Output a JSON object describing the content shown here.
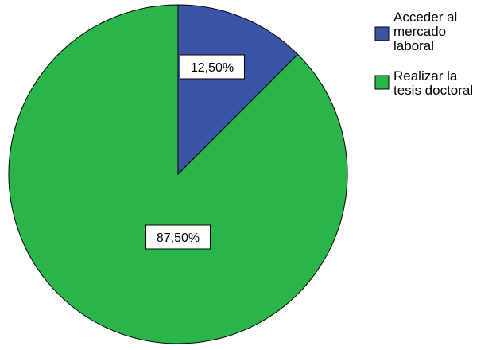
{
  "chart_data": {
    "type": "pie",
    "title": "",
    "categories": [
      "Acceder al mercado laboral",
      "Realizar la tesis doctoral"
    ],
    "values": [
      12.5,
      87.5
    ],
    "data_labels": [
      "12,50%",
      "87,50%"
    ],
    "colors": [
      "#3b55a6",
      "#2ab54a"
    ],
    "legend": {
      "placement": "top-right",
      "entries": [
        {
          "lines": [
            "Acceder al",
            "mercado",
            "laboral"
          ],
          "color": "#3b55a6"
        },
        {
          "lines": [
            "Realizar la",
            "tesis doctoral"
          ],
          "color": "#2ab54a"
        }
      ]
    }
  }
}
